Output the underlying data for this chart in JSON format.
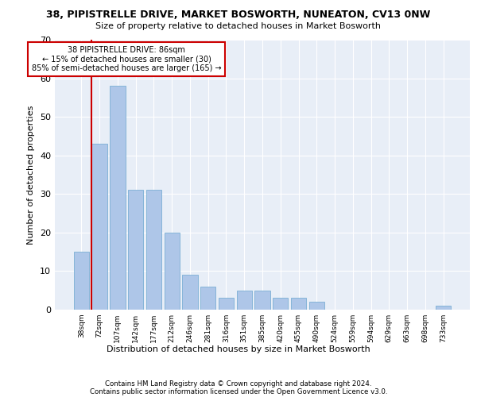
{
  "title1": "38, PIPISTRELLE DRIVE, MARKET BOSWORTH, NUNEATON, CV13 0NW",
  "title2": "Size of property relative to detached houses in Market Bosworth",
  "xlabel": "Distribution of detached houses by size in Market Bosworth",
  "ylabel": "Number of detached properties",
  "bar_labels": [
    "38sqm",
    "72sqm",
    "107sqm",
    "142sqm",
    "177sqm",
    "212sqm",
    "246sqm",
    "281sqm",
    "316sqm",
    "351sqm",
    "385sqm",
    "420sqm",
    "455sqm",
    "490sqm",
    "524sqm",
    "559sqm",
    "594sqm",
    "629sqm",
    "663sqm",
    "698sqm",
    "733sqm"
  ],
  "bar_values": [
    15,
    43,
    58,
    31,
    31,
    20,
    9,
    6,
    3,
    5,
    5,
    3,
    3,
    2,
    0,
    0,
    0,
    0,
    0,
    0,
    1
  ],
  "bar_color": "#aec6e8",
  "bar_edge_color": "#7aafd4",
  "background_color": "#e8eef7",
  "grid_color": "#ffffff",
  "vline_color": "#cc0000",
  "annotation_text": "38 PIPISTRELLE DRIVE: 86sqm\n← 15% of detached houses are smaller (30)\n85% of semi-detached houses are larger (165) →",
  "annotation_box_color": "#ffffff",
  "annotation_box_edge": "#cc0000",
  "ylim": [
    0,
    70
  ],
  "yticks": [
    0,
    10,
    20,
    30,
    40,
    50,
    60,
    70
  ],
  "footer1": "Contains HM Land Registry data © Crown copyright and database right 2024.",
  "footer2": "Contains public sector information licensed under the Open Government Licence v3.0."
}
